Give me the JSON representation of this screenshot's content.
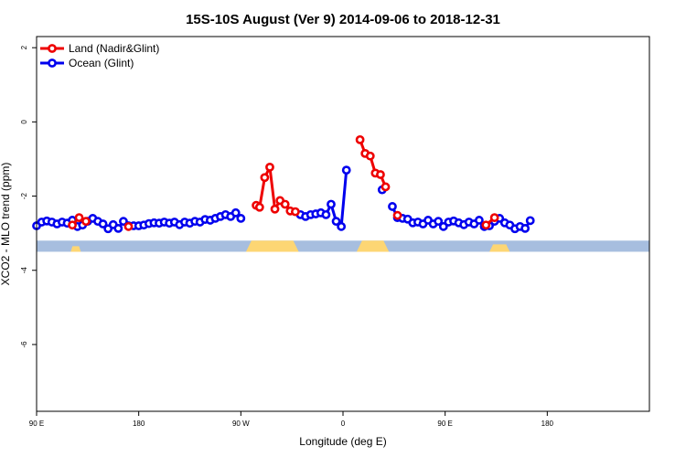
{
  "chart_data": {
    "type": "line",
    "title": "15S-10S August (Ver 9)   2014-09-06 to 2018-12-31",
    "xlabel": "Longitude (deg E)",
    "ylabel": "XCO2 - MLO trend (ppm)",
    "xlim": [
      -90,
      90
    ],
    "ylim": [
      -7.8,
      2.3
    ],
    "x_ticks": [
      {
        "value": -90,
        "label": "90 E"
      },
      {
        "value": -60,
        "label": "180"
      },
      {
        "value": -30,
        "label": "90 W"
      },
      {
        "value": 0,
        "label": "0"
      },
      {
        "value": 30,
        "label": "90 E"
      },
      {
        "value": 60,
        "label": "180"
      }
    ],
    "y_ticks": [
      {
        "value": 2,
        "label": "2"
      },
      {
        "value": 0,
        "label": "0"
      },
      {
        "value": -2,
        "label": "-2"
      },
      {
        "value": -4,
        "label": "-4"
      },
      {
        "value": -6,
        "label": "-6"
      }
    ],
    "legend_position": "top-left",
    "colors": {
      "land": "#ee0000",
      "ocean": "#0000ee",
      "ocean_band": "#a7bedf",
      "land_band": "#fdd674"
    },
    "surface_band": {
      "y_top": -3.2,
      "y_bottom": -3.5,
      "land_segments": [
        {
          "x0": -80,
          "x1": -77,
          "peak": -3.35
        },
        {
          "x0": -28.5,
          "x1": -13,
          "peak": -3.2
        },
        {
          "x0": 4,
          "x1": 13.5,
          "peak": -3.2
        },
        {
          "x0": 43,
          "x1": 49,
          "peak": -3.3
        }
      ]
    },
    "series": [
      {
        "name": "Land (Nadir&Glint)",
        "segments": [
          [
            [
              -79.5,
              -2.78
            ],
            [
              -77.5,
              -2.58
            ],
            [
              -75.5,
              -2.68
            ]
          ],
          [
            [
              -63,
              -2.82
            ]
          ],
          [
            [
              -25.5,
              -2.25
            ],
            [
              -24.5,
              -2.3
            ],
            [
              -23,
              -1.5
            ],
            [
              -21.5,
              -1.22
            ],
            [
              -20,
              -2.35
            ],
            [
              -18.5,
              -2.12
            ],
            [
              -17,
              -2.22
            ],
            [
              -15.5,
              -2.4
            ],
            [
              -14,
              -2.42
            ]
          ],
          [
            [
              5,
              -0.48
            ],
            [
              6.5,
              -0.85
            ],
            [
              8,
              -0.92
            ],
            [
              9.5,
              -1.38
            ],
            [
              11,
              -1.42
            ],
            [
              12.5,
              -1.75
            ]
          ],
          [
            [
              16,
              -2.52
            ]
          ],
          [
            [
              42,
              -2.78
            ],
            [
              44.5,
              -2.58
            ]
          ]
        ]
      },
      {
        "name": "Ocean (Glint)",
        "segments": [
          [
            [
              -90,
              -2.8
            ],
            [
              -88.5,
              -2.7
            ],
            [
              -87,
              -2.67
            ],
            [
              -85.5,
              -2.7
            ],
            [
              -84,
              -2.75
            ],
            [
              -82.5,
              -2.7
            ],
            [
              -81,
              -2.73
            ],
            [
              -79.5,
              -2.65
            ],
            [
              -78,
              -2.82
            ],
            [
              -76.5,
              -2.78
            ],
            [
              -75,
              -2.68
            ],
            [
              -73.5,
              -2.6
            ],
            [
              -72,
              -2.68
            ],
            [
              -70.5,
              -2.75
            ],
            [
              -69,
              -2.88
            ],
            [
              -67.5,
              -2.77
            ],
            [
              -66,
              -2.87
            ],
            [
              -64.5,
              -2.68
            ],
            [
              -63,
              -2.8
            ],
            [
              -61.5,
              -2.8
            ],
            [
              -60,
              -2.8
            ],
            [
              -58.5,
              -2.78
            ],
            [
              -57,
              -2.74
            ],
            [
              -55.5,
              -2.72
            ],
            [
              -54,
              -2.73
            ],
            [
              -52.5,
              -2.7
            ],
            [
              -51,
              -2.73
            ],
            [
              -49.5,
              -2.7
            ],
            [
              -48,
              -2.77
            ],
            [
              -46.5,
              -2.7
            ],
            [
              -45,
              -2.73
            ],
            [
              -43.5,
              -2.68
            ],
            [
              -42,
              -2.7
            ],
            [
              -40.5,
              -2.63
            ],
            [
              -39,
              -2.65
            ],
            [
              -37.5,
              -2.6
            ],
            [
              -36,
              -2.55
            ],
            [
              -34.5,
              -2.5
            ],
            [
              -33,
              -2.55
            ],
            [
              -31.5,
              -2.45
            ],
            [
              -30,
              -2.6
            ]
          ],
          [
            [
              -12.5,
              -2.5
            ],
            [
              -11,
              -2.55
            ],
            [
              -9.5,
              -2.5
            ],
            [
              -8,
              -2.48
            ],
            [
              -6.5,
              -2.45
            ],
            [
              -5,
              -2.5
            ],
            [
              -3.5,
              -2.22
            ],
            [
              -2,
              -2.68
            ],
            [
              -0.5,
              -2.82
            ],
            [
              1,
              -1.3
            ]
          ],
          [
            [
              11.5,
              -1.83
            ]
          ],
          [
            [
              14.5,
              -2.28
            ],
            [
              16,
              -2.58
            ],
            [
              17.5,
              -2.6
            ],
            [
              19,
              -2.62
            ],
            [
              20.5,
              -2.72
            ],
            [
              22,
              -2.7
            ],
            [
              23.5,
              -2.75
            ],
            [
              25,
              -2.65
            ],
            [
              26.5,
              -2.75
            ],
            [
              28,
              -2.68
            ],
            [
              29.5,
              -2.82
            ],
            [
              31,
              -2.7
            ],
            [
              32.5,
              -2.67
            ],
            [
              34,
              -2.72
            ],
            [
              35.5,
              -2.77
            ],
            [
              37,
              -2.7
            ],
            [
              38.5,
              -2.75
            ],
            [
              40,
              -2.65
            ],
            [
              41.5,
              -2.82
            ],
            [
              43,
              -2.8
            ],
            [
              44.5,
              -2.68
            ],
            [
              46,
              -2.6
            ],
            [
              47.5,
              -2.72
            ],
            [
              49,
              -2.78
            ],
            [
              50.5,
              -2.88
            ],
            [
              52,
              -2.82
            ],
            [
              53.5,
              -2.87
            ],
            [
              55,
              -2.66
            ]
          ]
        ]
      }
    ]
  }
}
